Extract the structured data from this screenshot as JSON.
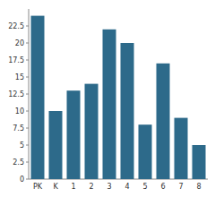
{
  "chart_data": {
    "type": "bar",
    "categories": [
      "PK",
      "K",
      "1",
      "2",
      "3",
      "4",
      "5",
      "6",
      "7",
      "8"
    ],
    "values": [
      24,
      10,
      13,
      14,
      22,
      20,
      8,
      17,
      9,
      5
    ],
    "color": "#2d6a8a",
    "ylim": [
      0,
      25
    ],
    "yticks": [
      0,
      2.5,
      5,
      7.5,
      10,
      12.5,
      15,
      17.5,
      20,
      22.5
    ]
  }
}
